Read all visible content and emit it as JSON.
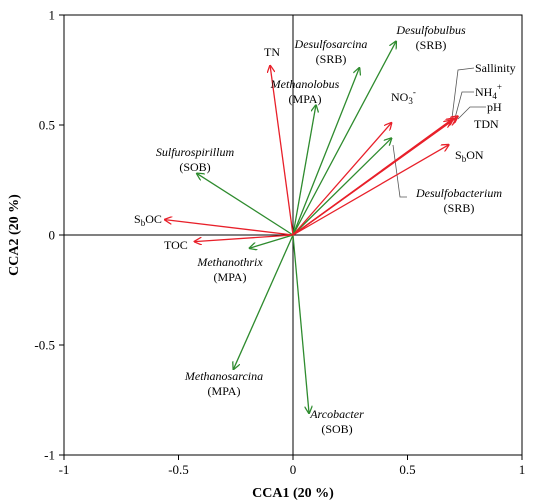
{
  "chart_data": {
    "type": "scatter",
    "subtype": "cca-biplot",
    "xlabel": "CCA1 (20 %)",
    "ylabel": "CCA2 (20 %)",
    "xlim": [
      -1,
      1
    ],
    "ylim": [
      -1,
      1
    ],
    "x_ticks": [
      "-1",
      "-0.5",
      "0",
      "0.5",
      "1"
    ],
    "y_ticks": [
      "-1",
      "-0.5",
      "0",
      "0.5",
      "1"
    ],
    "grid": false,
    "colors": {
      "environmental": "#e8202a",
      "species": "#2e8b2e",
      "axis": "#000000"
    },
    "environmental_vectors": [
      {
        "label": "TN",
        "label_sub": "",
        "label_sup": "",
        "x": -0.1,
        "y": 0.77
      },
      {
        "label": "NO",
        "label_sub": "3",
        "label_sup": "-",
        "x": 0.43,
        "y": 0.51
      },
      {
        "label": "Sallinity",
        "label_sub": "",
        "label_sup": "",
        "x": 0.69,
        "y": 0.52
      },
      {
        "label": "NH",
        "label_sub": "4",
        "label_sup": "+",
        "x": 0.7,
        "y": 0.53
      },
      {
        "label": "pH",
        "label_sub": "",
        "label_sup": "",
        "x": 0.71,
        "y": 0.53
      },
      {
        "label": "TDN",
        "label_sub": "",
        "label_sup": "",
        "x": 0.72,
        "y": 0.54
      },
      {
        "label": "S",
        "label_sub": "b",
        "label_sup": "",
        "label_suffix": "ON",
        "x": 0.68,
        "y": 0.41
      },
      {
        "label": "S",
        "label_sub": "b",
        "label_sup": "",
        "label_suffix": "OC",
        "x": -0.56,
        "y": 0.07
      },
      {
        "label": "TOC",
        "label_sub": "",
        "label_sup": "",
        "x": -0.43,
        "y": -0.03
      }
    ],
    "species_vectors": [
      {
        "name": "Desulfobulbus",
        "group": "(SRB)",
        "x": 0.45,
        "y": 0.88
      },
      {
        "name": "Desulfosarcina",
        "group": "(SRB)",
        "x": 0.29,
        "y": 0.76
      },
      {
        "name": "Methanolobus",
        "group": "(MPA)",
        "x": 0.1,
        "y": 0.59
      },
      {
        "name": "Desulfobacterium",
        "group": "(SRB)",
        "x": 0.43,
        "y": 0.44
      },
      {
        "name": "Sulfurospirillum",
        "group": "(SOB)",
        "x": -0.42,
        "y": 0.28
      },
      {
        "name": "Methanothrix",
        "group": "(MPA)",
        "x": -0.19,
        "y": -0.06
      },
      {
        "name": "Methanosarcina",
        "group": "(MPA)",
        "x": -0.26,
        "y": -0.61
      },
      {
        "name": "Arcobacter",
        "group": "(SOB)",
        "x": 0.07,
        "y": -0.81
      }
    ]
  }
}
